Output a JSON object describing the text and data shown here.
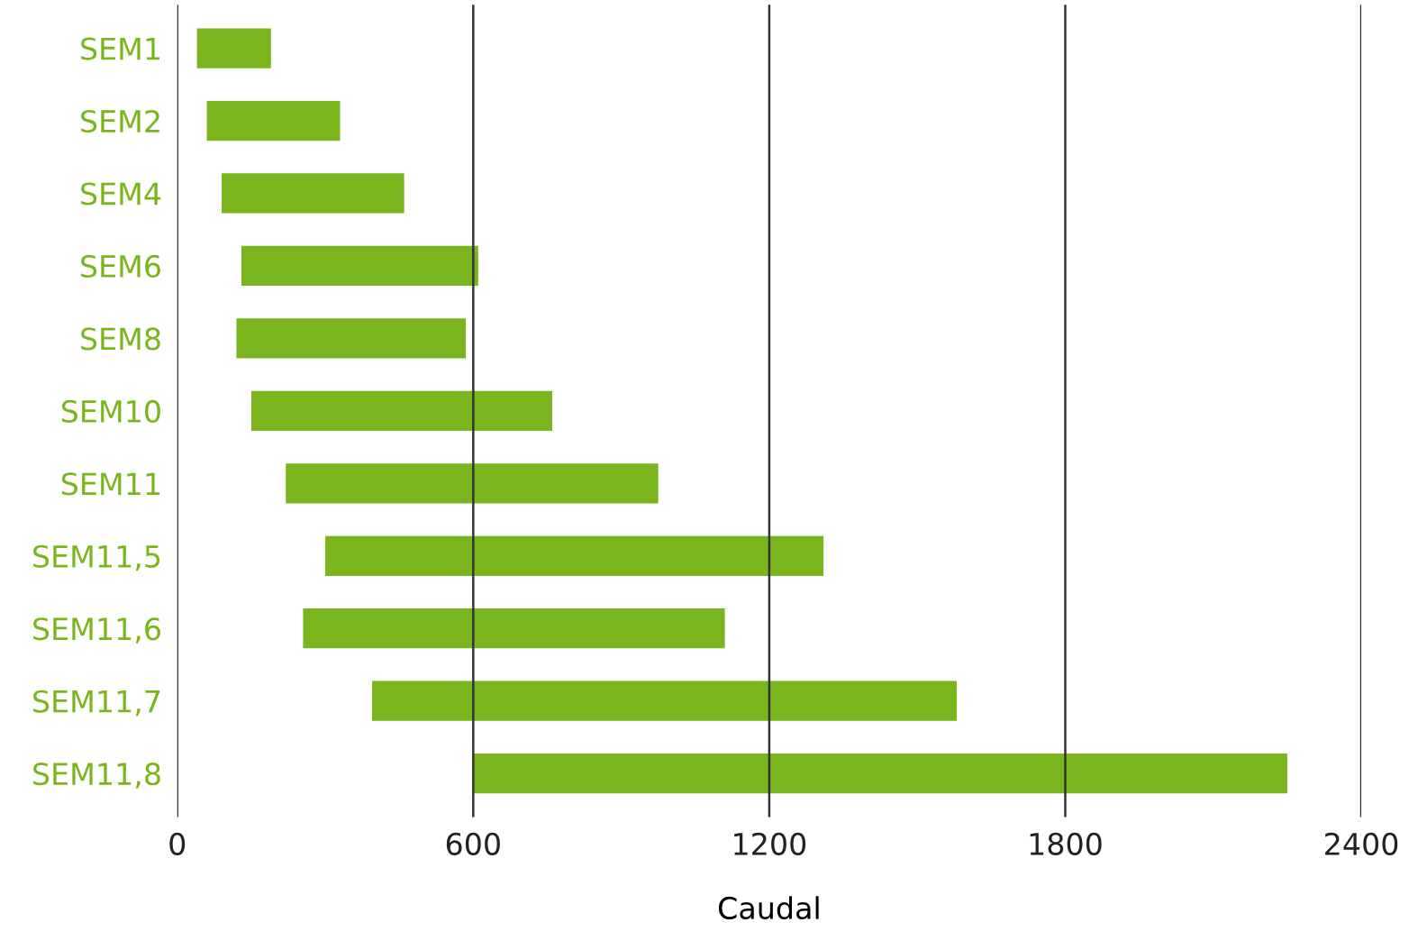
{
  "chart_data": {
    "type": "bar",
    "orientation": "horizontal",
    "xlabel": "Caudal",
    "categories": [
      "SEM1",
      "SEM2",
      "SEM4",
      "SEM6",
      "SEM8",
      "SEM10",
      "SEM11",
      "SEM11,5",
      "SEM11,6",
      "SEM11,7",
      "SEM11,8"
    ],
    "base": [
      40,
      60,
      90,
      130,
      120,
      150,
      220,
      300,
      255,
      395,
      600
    ],
    "values": [
      150,
      270,
      370,
      480,
      465,
      610,
      755,
      1010,
      855,
      1185,
      1650
    ],
    "color": "#7ab51d",
    "xlim": [
      0,
      2400
    ],
    "xticks": [
      0,
      600,
      1200,
      1800,
      2400
    ],
    "grid": "x",
    "legend": false
  }
}
